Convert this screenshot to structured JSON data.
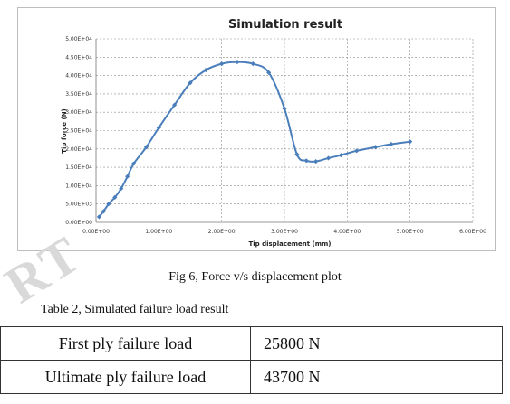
{
  "figure": {
    "caption": "Fig 6, Force v/s displacement plot"
  },
  "table": {
    "caption": "Table 2, Simulated failure load result",
    "rows": [
      {
        "label": "First ply failure load",
        "value": "25800 N"
      },
      {
        "label": "Ultimate ply failure load",
        "value": "43700 N"
      }
    ]
  },
  "watermark": "RT",
  "chart_data": {
    "type": "line",
    "title": "Simulation result",
    "xlabel": "Tip displacement (mm)",
    "ylabel": "Tip force (N)",
    "xlim": [
      0,
      6
    ],
    "ylim": [
      0,
      50000
    ],
    "x_ticks": [
      "0.00E+00",
      "1.00E+00",
      "2.00E+00",
      "3.00E+00",
      "4.00E+00",
      "5.00E+00",
      "6.00E+00"
    ],
    "y_ticks": [
      "0.00E+00",
      "5.00E+03",
      "1.00E+04",
      "1.50E+04",
      "2.00E+04",
      "2.50E+04",
      "3.00E+04",
      "3.50E+04",
      "4.00E+04",
      "4.50E+04",
      "5.00E+04"
    ],
    "grid": true,
    "line_color": "#4a7ebb",
    "series": [
      {
        "x": [
          0.05,
          0.12,
          0.2,
          0.3,
          0.4,
          0.5,
          0.6,
          0.8,
          1.0,
          1.25,
          1.5,
          1.75,
          2.0,
          2.25,
          2.5,
          2.75,
          3.0,
          3.2,
          3.35,
          3.5,
          3.7,
          3.9,
          4.15,
          4.45,
          4.7,
          5.0
        ],
        "y": [
          1500,
          3000,
          5000,
          6800,
          9200,
          12500,
          16000,
          20500,
          25800,
          32000,
          38000,
          41500,
          43200,
          43700,
          43200,
          40800,
          31000,
          18500,
          16800,
          16600,
          17500,
          18300,
          19500,
          20500,
          21300,
          22000
        ]
      }
    ]
  }
}
